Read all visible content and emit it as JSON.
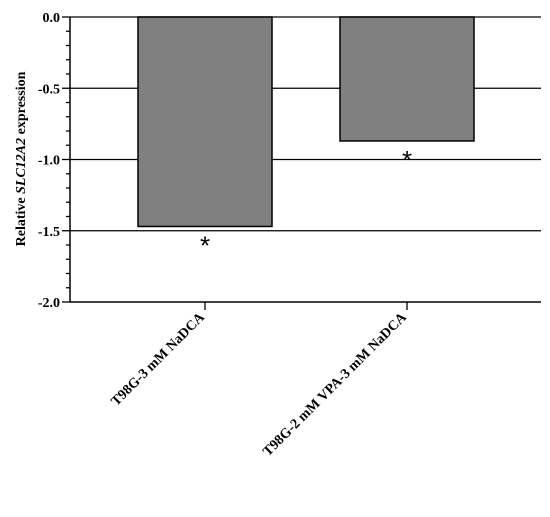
{
  "chart_data": {
    "type": "bar",
    "categories": [
      "T98G-3 mM NaDCA",
      "T98G-2 mM VPA-3 mM NaDCA"
    ],
    "values": [
      -1.47,
      -0.87
    ],
    "annotations": [
      "*",
      "*"
    ],
    "ylabel_prefix": "Relative ",
    "ylabel_gene": "SLC12A2",
    "ylabel_suffix": " expression",
    "xlabel": "",
    "ylim": [
      -2.0,
      0.0
    ],
    "yticks": [
      "0.0",
      "-0.5",
      "-1.0",
      "-1.5",
      "-2.0"
    ],
    "ytick_values": [
      0.0,
      -0.5,
      -1.0,
      -1.5,
      -2.0
    ],
    "grid": true,
    "bar_color": "#808080"
  }
}
